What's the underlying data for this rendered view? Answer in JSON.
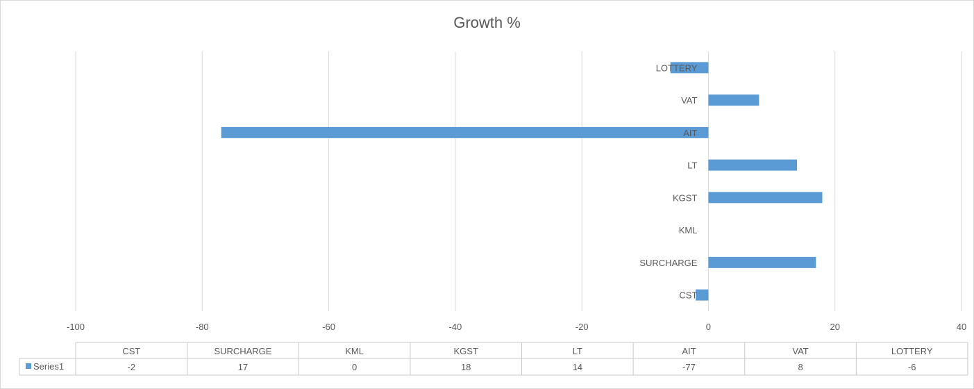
{
  "chart_data": {
    "type": "bar",
    "orientation": "horizontal",
    "title": "Growth %",
    "categories": [
      "CST",
      "SURCHARGE",
      "KML",
      "KGST",
      "LT",
      "AIT",
      "VAT",
      "LOTTERY"
    ],
    "series": [
      {
        "name": "Series1",
        "values": [
          -2,
          17,
          0,
          18,
          14,
          -77,
          8,
          -6
        ]
      }
    ],
    "xlim": [
      -100,
      40
    ],
    "x_ticks": [
      -100,
      -80,
      -60,
      -40,
      -20,
      0,
      20,
      40
    ],
    "grid": true,
    "legend": "data-table",
    "data_table": true,
    "colors": {
      "bar": "#5b9bd5",
      "grid": "#d9d9d9",
      "text": "#595959"
    }
  }
}
